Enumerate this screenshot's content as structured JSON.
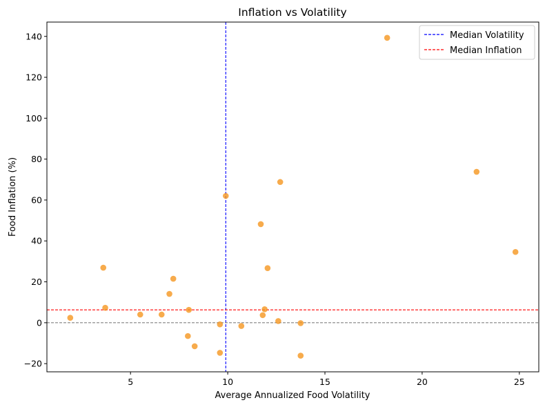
{
  "chart_data": {
    "type": "scatter",
    "title": "Inflation vs Volatility",
    "xlabel": "Average Annualized Food Volatility",
    "ylabel": "Food Inflation (%)",
    "xlim": [
      0.7,
      26.0
    ],
    "ylim": [
      -24.0,
      147.0
    ],
    "xticks": [
      5,
      10,
      15,
      20,
      25
    ],
    "yticks": [
      -20,
      0,
      20,
      40,
      60,
      80,
      100,
      120,
      140
    ],
    "grid": false,
    "point_color": "#f5961f",
    "points": [
      {
        "x": 1.9,
        "y": 2.4
      },
      {
        "x": 3.6,
        "y": 26.9
      },
      {
        "x": 3.7,
        "y": 7.3
      },
      {
        "x": 5.5,
        "y": 4.0
      },
      {
        "x": 6.6,
        "y": 4.0
      },
      {
        "x": 7.0,
        "y": 14.1
      },
      {
        "x": 7.2,
        "y": 21.5
      },
      {
        "x": 7.95,
        "y": -6.5
      },
      {
        "x": 8.0,
        "y": 6.3
      },
      {
        "x": 8.3,
        "y": -11.5
      },
      {
        "x": 9.6,
        "y": -14.7
      },
      {
        "x": 9.6,
        "y": -0.8
      },
      {
        "x": 9.9,
        "y": 62.0
      },
      {
        "x": 10.7,
        "y": -1.6
      },
      {
        "x": 11.7,
        "y": 48.2
      },
      {
        "x": 11.8,
        "y": 3.7
      },
      {
        "x": 11.9,
        "y": 6.6
      },
      {
        "x": 12.05,
        "y": 26.7
      },
      {
        "x": 12.6,
        "y": 0.8
      },
      {
        "x": 12.7,
        "y": 68.8
      },
      {
        "x": 13.75,
        "y": -0.2
      },
      {
        "x": 13.75,
        "y": -16.1
      },
      {
        "x": 18.2,
        "y": 139.3
      },
      {
        "x": 22.8,
        "y": 73.8
      },
      {
        "x": 24.8,
        "y": 34.6
      }
    ],
    "reference_lines": [
      {
        "orientation": "vertical",
        "value": 9.9,
        "color": "#0000ff",
        "style": "dashed",
        "name": "Median Volatility"
      },
      {
        "orientation": "horizontal",
        "value": 6.3,
        "color": "#ff0000",
        "style": "dashed",
        "name": "Median Inflation"
      },
      {
        "orientation": "horizontal",
        "value": 0,
        "color": "#808080",
        "style": "dashed",
        "name": ""
      }
    ],
    "legend": {
      "position": "top-right",
      "entries": [
        "Median Volatility",
        "Median Inflation"
      ]
    }
  }
}
